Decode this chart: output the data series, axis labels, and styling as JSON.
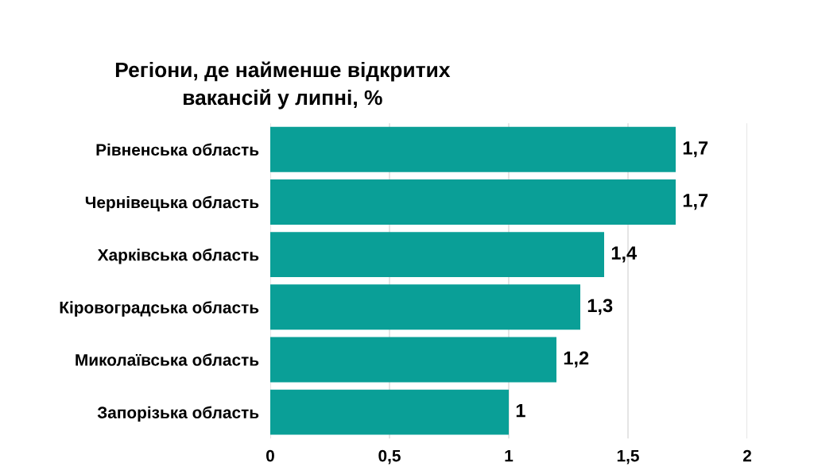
{
  "chart_data": {
    "type": "bar",
    "orientation": "horizontal",
    "title": "Регіони, де найменше відкритих\nвакансій у липні, %",
    "categories": [
      "Рівненська область",
      "Чернівецька область",
      "Харківська область",
      "Кіровоградська область",
      "Миколаївська область",
      "Запорізька область"
    ],
    "values": [
      1.7,
      1.7,
      1.4,
      1.3,
      1.2,
      1
    ],
    "value_labels": [
      "1,7",
      "1,7",
      "1,4",
      "1,3",
      "1,2",
      "1"
    ],
    "color": "#0a9f97",
    "xlim": [
      0,
      2
    ],
    "xticks": [
      0,
      {
        "value": 0.5,
        "label": "0,5"
      },
      1,
      {
        "value": 1.5,
        "label": "1,5"
      },
      2
    ],
    "grid": "x",
    "legend": false
  }
}
